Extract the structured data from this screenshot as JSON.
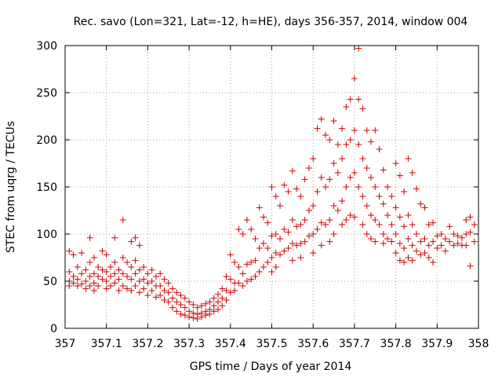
{
  "chart_data": {
    "type": "scatter",
    "title": "Rec. savo (Lon=321, Lat=-12, h=HE), days 356-357, 2014, window 004",
    "xlabel": "GPS time / Days of year 2014",
    "ylabel": "STEC from uqrg / TECUs",
    "xlim": [
      357,
      358
    ],
    "ylim": [
      0,
      300
    ],
    "x_ticks": [
      357,
      357.1,
      357.2,
      357.3,
      357.4,
      357.5,
      357.6,
      357.7,
      357.8,
      357.9,
      358
    ],
    "x_tick_labels": [
      "357",
      "357.1",
      "357.2",
      "357.3",
      "357.4",
      "357.5",
      "357.6",
      "357.7",
      "357.8",
      "357.9",
      "358"
    ],
    "y_ticks": [
      0,
      50,
      100,
      150,
      200,
      250,
      300
    ],
    "y_tick_labels": [
      "0",
      "50",
      "100",
      "150",
      "200",
      "250",
      "300"
    ],
    "grid": true,
    "marker": "plus",
    "color": "#cc0000",
    "points": [
      [
        357.01,
        82
      ],
      [
        357.01,
        60
      ],
      [
        357.01,
        50
      ],
      [
        357.01,
        45
      ],
      [
        357.02,
        78
      ],
      [
        357.02,
        55
      ],
      [
        357.02,
        48
      ],
      [
        357.03,
        65
      ],
      [
        357.03,
        52
      ],
      [
        357.03,
        45
      ],
      [
        357.04,
        80
      ],
      [
        357.04,
        58
      ],
      [
        357.04,
        47
      ],
      [
        357.05,
        62
      ],
      [
        357.05,
        50
      ],
      [
        357.05,
        42
      ],
      [
        357.06,
        96
      ],
      [
        357.06,
        70
      ],
      [
        357.06,
        55
      ],
      [
        357.06,
        45
      ],
      [
        357.07,
        75
      ],
      [
        357.07,
        58
      ],
      [
        357.07,
        48
      ],
      [
        357.07,
        40
      ],
      [
        357.08,
        65
      ],
      [
        357.08,
        55
      ],
      [
        357.08,
        45
      ],
      [
        357.09,
        82
      ],
      [
        357.09,
        62
      ],
      [
        357.09,
        52
      ],
      [
        357.1,
        78
      ],
      [
        357.1,
        60
      ],
      [
        357.1,
        50
      ],
      [
        357.1,
        42
      ],
      [
        357.11,
        65
      ],
      [
        357.11,
        55
      ],
      [
        357.11,
        45
      ],
      [
        357.12,
        96
      ],
      [
        357.12,
        70
      ],
      [
        357.12,
        58
      ],
      [
        357.12,
        48
      ],
      [
        357.13,
        62
      ],
      [
        357.13,
        52
      ],
      [
        357.13,
        40
      ],
      [
        357.14,
        115
      ],
      [
        357.14,
        75
      ],
      [
        357.14,
        58
      ],
      [
        357.14,
        45
      ],
      [
        357.15,
        70
      ],
      [
        357.15,
        55
      ],
      [
        357.15,
        42
      ],
      [
        357.16,
        92
      ],
      [
        357.16,
        65
      ],
      [
        357.16,
        52
      ],
      [
        357.16,
        40
      ],
      [
        357.17,
        96
      ],
      [
        357.17,
        72
      ],
      [
        357.17,
        58
      ],
      [
        357.17,
        45
      ],
      [
        357.18,
        88
      ],
      [
        357.18,
        62
      ],
      [
        357.18,
        50
      ],
      [
        357.18,
        38
      ],
      [
        357.19,
        65
      ],
      [
        357.19,
        52
      ],
      [
        357.19,
        42
      ],
      [
        357.2,
        58
      ],
      [
        357.2,
        48
      ],
      [
        357.2,
        35
      ],
      [
        357.21,
        62
      ],
      [
        357.21,
        50
      ],
      [
        357.21,
        40
      ],
      [
        357.22,
        55
      ],
      [
        357.22,
        45
      ],
      [
        357.22,
        33
      ],
      [
        357.23,
        58
      ],
      [
        357.23,
        45
      ],
      [
        357.23,
        35
      ],
      [
        357.24,
        52
      ],
      [
        357.24,
        40
      ],
      [
        357.24,
        30
      ],
      [
        357.25,
        48
      ],
      [
        357.25,
        38
      ],
      [
        357.25,
        28
      ],
      [
        357.26,
        42
      ],
      [
        357.26,
        32
      ],
      [
        357.26,
        22
      ],
      [
        357.27,
        38
      ],
      [
        357.27,
        28
      ],
      [
        357.27,
        18
      ],
      [
        357.28,
        35
      ],
      [
        357.28,
        25
      ],
      [
        357.28,
        15
      ],
      [
        357.29,
        32
      ],
      [
        357.29,
        22
      ],
      [
        357.29,
        14
      ],
      [
        357.3,
        28
      ],
      [
        357.3,
        18
      ],
      [
        357.3,
        12
      ],
      [
        357.31,
        25
      ],
      [
        357.31,
        16
      ],
      [
        357.31,
        11
      ],
      [
        357.32,
        22
      ],
      [
        357.32,
        15
      ],
      [
        357.32,
        10
      ],
      [
        357.33,
        24
      ],
      [
        357.33,
        16
      ],
      [
        357.33,
        12
      ],
      [
        357.34,
        26
      ],
      [
        357.34,
        18
      ],
      [
        357.34,
        14
      ],
      [
        357.35,
        28
      ],
      [
        357.35,
        20
      ],
      [
        357.35,
        15
      ],
      [
        357.36,
        32
      ],
      [
        357.36,
        24
      ],
      [
        357.36,
        18
      ],
      [
        357.37,
        36
      ],
      [
        357.37,
        28
      ],
      [
        357.37,
        20
      ],
      [
        357.38,
        42
      ],
      [
        357.38,
        32
      ],
      [
        357.38,
        24
      ],
      [
        357.39,
        55
      ],
      [
        357.39,
        40
      ],
      [
        357.39,
        30
      ],
      [
        357.4,
        78
      ],
      [
        357.4,
        52
      ],
      [
        357.4,
        38
      ],
      [
        357.41,
        70
      ],
      [
        357.41,
        48
      ],
      [
        357.41,
        40
      ],
      [
        357.42,
        105
      ],
      [
        357.42,
        65
      ],
      [
        357.42,
        48
      ],
      [
        357.43,
        100
      ],
      [
        357.43,
        58
      ],
      [
        357.43,
        45
      ],
      [
        357.44,
        115
      ],
      [
        357.44,
        68
      ],
      [
        357.44,
        50
      ],
      [
        357.45,
        105
      ],
      [
        357.45,
        70
      ],
      [
        357.45,
        52
      ],
      [
        357.46,
        95
      ],
      [
        357.46,
        72
      ],
      [
        357.46,
        55
      ],
      [
        357.47,
        128
      ],
      [
        357.47,
        85
      ],
      [
        357.47,
        60
      ],
      [
        357.48,
        118
      ],
      [
        357.48,
        90
      ],
      [
        357.48,
        65
      ],
      [
        357.49,
        112
      ],
      [
        357.49,
        85
      ],
      [
        357.49,
        70
      ],
      [
        357.5,
        150
      ],
      [
        357.5,
        98
      ],
      [
        357.5,
        75
      ],
      [
        357.5,
        60
      ],
      [
        357.51,
        140
      ],
      [
        357.51,
        100
      ],
      [
        357.51,
        80
      ],
      [
        357.51,
        65
      ],
      [
        357.52,
        130
      ],
      [
        357.52,
        95
      ],
      [
        357.52,
        78
      ],
      [
        357.53,
        152
      ],
      [
        357.53,
        105
      ],
      [
        357.53,
        82
      ],
      [
        357.54,
        145
      ],
      [
        357.54,
        102
      ],
      [
        357.54,
        85
      ],
      [
        357.55,
        167
      ],
      [
        357.55,
        115
      ],
      [
        357.55,
        90
      ],
      [
        357.55,
        72
      ],
      [
        357.56,
        148
      ],
      [
        357.56,
        108
      ],
      [
        357.56,
        88
      ],
      [
        357.57,
        140
      ],
      [
        357.57,
        110
      ],
      [
        357.57,
        90
      ],
      [
        357.57,
        75
      ],
      [
        357.58,
        158
      ],
      [
        357.58,
        115
      ],
      [
        357.58,
        92
      ],
      [
        357.59,
        170
      ],
      [
        357.59,
        125
      ],
      [
        357.59,
        98
      ],
      [
        357.6,
        180
      ],
      [
        357.6,
        130
      ],
      [
        357.6,
        100
      ],
      [
        357.6,
        80
      ],
      [
        357.61,
        212
      ],
      [
        357.61,
        145
      ],
      [
        357.61,
        105
      ],
      [
        357.62,
        222
      ],
      [
        357.62,
        160
      ],
      [
        357.62,
        112
      ],
      [
        357.62,
        88
      ],
      [
        357.63,
        205
      ],
      [
        357.63,
        150
      ],
      [
        357.63,
        110
      ],
      [
        357.64,
        200
      ],
      [
        357.64,
        158
      ],
      [
        357.64,
        115
      ],
      [
        357.64,
        92
      ],
      [
        357.65,
        220
      ],
      [
        357.65,
        175
      ],
      [
        357.65,
        130
      ],
      [
        357.65,
        100
      ],
      [
        357.66,
        195
      ],
      [
        357.66,
        165
      ],
      [
        357.66,
        125
      ],
      [
        357.67,
        212
      ],
      [
        357.67,
        180
      ],
      [
        357.67,
        135
      ],
      [
        357.67,
        110
      ],
      [
        357.68,
        235
      ],
      [
        357.68,
        195
      ],
      [
        357.68,
        150
      ],
      [
        357.68,
        115
      ],
      [
        357.69,
        243
      ],
      [
        357.69,
        200
      ],
      [
        357.69,
        160
      ],
      [
        357.69,
        120
      ],
      [
        357.7,
        265
      ],
      [
        357.7,
        210
      ],
      [
        357.7,
        165
      ],
      [
        357.7,
        118
      ],
      [
        357.71,
        297
      ],
      [
        357.71,
        243
      ],
      [
        357.71,
        195
      ],
      [
        357.71,
        150
      ],
      [
        357.72,
        233
      ],
      [
        357.72,
        180
      ],
      [
        357.72,
        140
      ],
      [
        357.72,
        110
      ],
      [
        357.73,
        210
      ],
      [
        357.73,
        170
      ],
      [
        357.73,
        130
      ],
      [
        357.73,
        100
      ],
      [
        357.74,
        198
      ],
      [
        357.74,
        160
      ],
      [
        357.74,
        120
      ],
      [
        357.74,
        95
      ],
      [
        357.75,
        210
      ],
      [
        357.75,
        150
      ],
      [
        357.75,
        115
      ],
      [
        357.75,
        92
      ],
      [
        357.76,
        190
      ],
      [
        357.76,
        140
      ],
      [
        357.76,
        110
      ],
      [
        357.77,
        168
      ],
      [
        357.77,
        132
      ],
      [
        357.77,
        100
      ],
      [
        357.77,
        90
      ],
      [
        357.78,
        150
      ],
      [
        357.78,
        120
      ],
      [
        357.78,
        95
      ],
      [
        357.79,
        140
      ],
      [
        357.79,
        110
      ],
      [
        357.79,
        92
      ],
      [
        357.8,
        175
      ],
      [
        357.8,
        128
      ],
      [
        357.8,
        100
      ],
      [
        357.8,
        80
      ],
      [
        357.81,
        162
      ],
      [
        357.81,
        118
      ],
      [
        357.81,
        90
      ],
      [
        357.81,
        72
      ],
      [
        357.82,
        145
      ],
      [
        357.82,
        108
      ],
      [
        357.82,
        85
      ],
      [
        357.82,
        70
      ],
      [
        357.83,
        180
      ],
      [
        357.83,
        120
      ],
      [
        357.83,
        95
      ],
      [
        357.83,
        75
      ],
      [
        357.84,
        165
      ],
      [
        357.84,
        110
      ],
      [
        357.84,
        88
      ],
      [
        357.84,
        72
      ],
      [
        357.85,
        148
      ],
      [
        357.85,
        100
      ],
      [
        357.85,
        82
      ],
      [
        357.86,
        132
      ],
      [
        357.86,
        92
      ],
      [
        357.86,
        78
      ],
      [
        357.87,
        128
      ],
      [
        357.87,
        95
      ],
      [
        357.87,
        80
      ],
      [
        357.88,
        110
      ],
      [
        357.88,
        88
      ],
      [
        357.88,
        75
      ],
      [
        357.89,
        112
      ],
      [
        357.89,
        92
      ],
      [
        357.89,
        70
      ],
      [
        357.9,
        98
      ],
      [
        357.9,
        85
      ],
      [
        357.91,
        100
      ],
      [
        357.91,
        88
      ],
      [
        357.92,
        95
      ],
      [
        357.92,
        82
      ],
      [
        357.93,
        108
      ],
      [
        357.93,
        92
      ],
      [
        357.94,
        100
      ],
      [
        357.94,
        88
      ],
      [
        357.95,
        98
      ],
      [
        357.95,
        90
      ],
      [
        357.96,
        96
      ],
      [
        357.96,
        88
      ],
      [
        357.97,
        115
      ],
      [
        357.97,
        100
      ],
      [
        357.97,
        88
      ],
      [
        357.98,
        118
      ],
      [
        357.98,
        102
      ],
      [
        357.98,
        66
      ],
      [
        357.99,
        110
      ],
      [
        357.99,
        92
      ]
    ]
  }
}
